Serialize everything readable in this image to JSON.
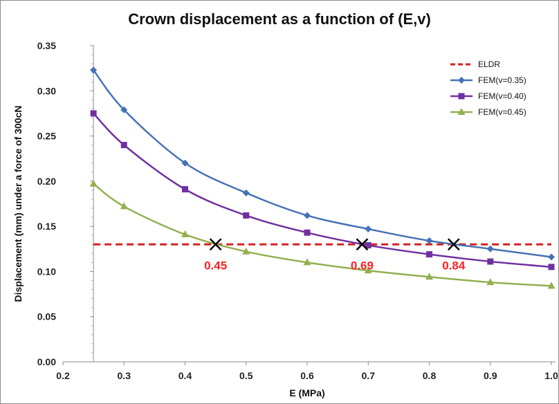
{
  "chart_data": {
    "type": "line",
    "title": "Crown displacement as a function of (E,v)",
    "xlabel": "E (MPa)",
    "ylabel": "Displacement (mm) under a force of 300cN",
    "xlim": [
      0.2,
      1.0
    ],
    "ylim": [
      0,
      0.35
    ],
    "xticks": [
      0.2,
      0.3,
      0.4,
      0.5,
      0.6,
      0.7,
      0.8,
      0.9,
      1.0
    ],
    "xtick_labels": [
      "0.2",
      "0.3",
      "0.4",
      "0.5",
      "0.6",
      "0.7",
      "0.8",
      "0.9",
      "1.0"
    ],
    "yticks": [
      0,
      0.05,
      0.1,
      0.15,
      0.2,
      0.25,
      0.3,
      0.35
    ],
    "ytick_labels": [
      "0.00",
      "0.05",
      "0.10",
      "0.15",
      "0.20",
      "0.25",
      "0.30",
      "0.35"
    ],
    "grid": false,
    "legend_position": "top-right",
    "reference_line": {
      "name": "ELDR",
      "y": 0.13,
      "color": "#d42020",
      "style": "dashed"
    },
    "series": [
      {
        "name": "FEM(v=0.35)",
        "color": "#4472b4",
        "marker": "diamond",
        "x": [
          0.25,
          0.3,
          0.4,
          0.5,
          0.6,
          0.7,
          0.8,
          0.9,
          1.0
        ],
        "y": [
          0.323,
          0.279,
          0.22,
          0.187,
          0.162,
          0.147,
          0.134,
          0.125,
          0.116
        ]
      },
      {
        "name": "FEM(v=0.40)",
        "color": "#7030a0",
        "marker": "square",
        "x": [
          0.25,
          0.3,
          0.4,
          0.5,
          0.6,
          0.7,
          0.8,
          0.9,
          1.0
        ],
        "y": [
          0.275,
          0.24,
          0.191,
          0.162,
          0.143,
          0.129,
          0.119,
          0.111,
          0.105
        ]
      },
      {
        "name": "FEM(v=0.45)",
        "color": "#92b050",
        "marker": "triangle",
        "x": [
          0.25,
          0.3,
          0.4,
          0.5,
          0.6,
          0.7,
          0.8,
          0.9,
          1.0
        ],
        "y": [
          0.197,
          0.172,
          0.141,
          0.122,
          0.11,
          0.101,
          0.094,
          0.088,
          0.084
        ]
      }
    ],
    "intersections": [
      {
        "x": 0.45,
        "y": 0.13,
        "label": "0.45"
      },
      {
        "x": 0.69,
        "y": 0.13,
        "label": "0.69"
      },
      {
        "x": 0.84,
        "y": 0.13,
        "label": "0.84"
      }
    ],
    "annotation_color": "#ff2020"
  }
}
